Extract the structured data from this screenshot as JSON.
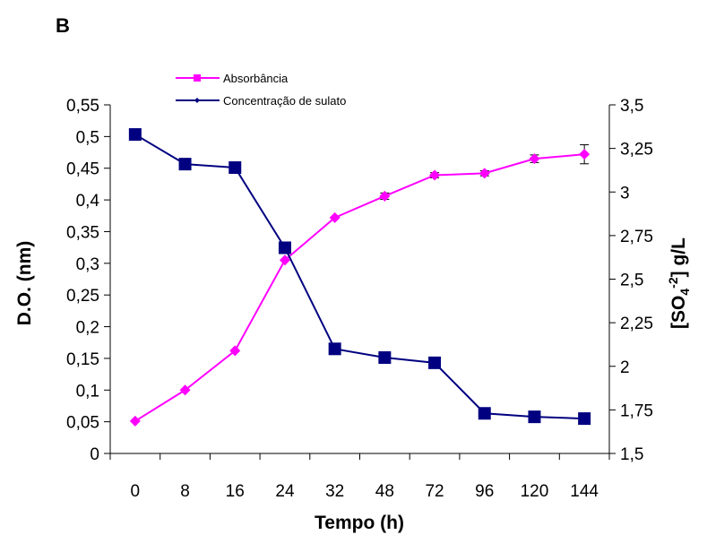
{
  "panel_label": "B",
  "chart_data": {
    "type": "line",
    "categories": [
      "0",
      "8",
      "16",
      "24",
      "32",
      "48",
      "72",
      "96",
      "120",
      "144"
    ],
    "xlabel": "Tempo (h)",
    "ylabel_left": "D.O. (nm)",
    "ylabel_right": "[SO4-2] g/L",
    "ylim_left": [
      0,
      0.55
    ],
    "ylim_right": [
      1.5,
      3.5
    ],
    "yticks_left": [
      "0",
      "0,05",
      "0,1",
      "0,15",
      "0,2",
      "0,25",
      "0,3",
      "0,35",
      "0,4",
      "0,45",
      "0,5",
      "0,55"
    ],
    "yticks_right": [
      "1,5",
      "1,75",
      "2",
      "2,25",
      "2,5",
      "2,75",
      "3",
      "3,25",
      "3,5"
    ],
    "grid": false,
    "legend": "top-center",
    "series": [
      {
        "name": "Absorbância",
        "axis": "left",
        "color": "#ff00ff",
        "marker": "square",
        "values": [
          0.051,
          0.1,
          0.162,
          0.305,
          0.372,
          0.406,
          0.439,
          0.442,
          0.465,
          0.472
        ],
        "errors": [
          0,
          0,
          0,
          0,
          0,
          0.005,
          0.004,
          0.004,
          0.006,
          0.015
        ]
      },
      {
        "name": "Concentração de sulato",
        "axis": "right",
        "color": "#000080",
        "marker": "diamond",
        "values": [
          3.33,
          3.16,
          3.14,
          2.68,
          2.1,
          2.05,
          2.02,
          1.73,
          1.71,
          1.7
        ]
      }
    ]
  }
}
